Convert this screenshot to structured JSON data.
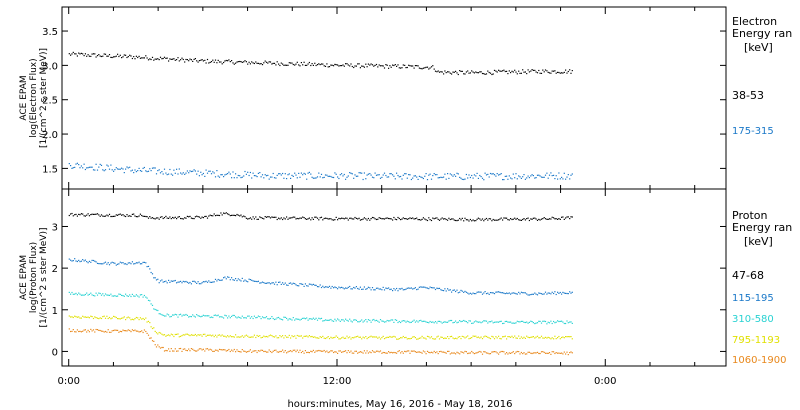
{
  "xlabel": "hours:minutes, May 16, 2016 - May 18, 2016",
  "x_ticks": [
    "0:00",
    "12:00",
    "0:00"
  ],
  "x_tick_hours": [
    0,
    12,
    24
  ],
  "x_range_hours": [
    -0.3,
    29.4
  ],
  "chart_data": [
    {
      "type": "scatter",
      "title": "",
      "ylabel": [
        "ACE EPAM",
        "log(Electron Flux)",
        "[1/(cm^2 s ster MeV)]"
      ],
      "ylim": [
        1.2,
        3.85
      ],
      "y_ticks": [
        1.5,
        2.0,
        2.5,
        3.0,
        3.5
      ],
      "y_tick_labels": [
        "1.5",
        "2.0",
        "2.5",
        "3.0",
        "3.5"
      ],
      "legend_title": [
        "Electron",
        "Energy ran",
        "[keV]"
      ],
      "series": [
        {
          "name": "38-53",
          "color": "#000000",
          "points": [
            [
              0.0,
              3.17
            ],
            [
              3.0,
              3.13
            ],
            [
              6.0,
              3.07
            ],
            [
              9.0,
              3.04
            ],
            [
              12.0,
              3.01
            ],
            [
              15.0,
              2.99
            ],
            [
              16.3,
              2.98
            ],
            [
              16.5,
              2.91
            ],
            [
              18.0,
              2.9
            ],
            [
              21.0,
              2.92
            ],
            [
              22.5,
              2.92
            ]
          ]
        },
        {
          "name": "175-315",
          "color": "#1a78c8",
          "points": [
            [
              0.0,
              1.56
            ],
            [
              3.0,
              1.48
            ],
            [
              6.0,
              1.44
            ],
            [
              9.0,
              1.4
            ],
            [
              12.0,
              1.4
            ],
            [
              15.0,
              1.39
            ],
            [
              18.0,
              1.39
            ],
            [
              21.0,
              1.4
            ],
            [
              22.5,
              1.4
            ]
          ]
        }
      ]
    },
    {
      "type": "scatter",
      "title": "",
      "ylabel": [
        "ACE EPAM",
        "log(Proton Flux)",
        "[1/(cm^2 s ster MeV)]"
      ],
      "ylim": [
        -0.35,
        3.9
      ],
      "y_ticks": [
        0,
        1,
        2,
        3
      ],
      "y_tick_labels": [
        "0",
        "1",
        "2",
        "3"
      ],
      "legend_title": [
        "Proton",
        "Energy ran",
        "[keV]"
      ],
      "series": [
        {
          "name": "47-68",
          "color": "#000000",
          "points": [
            [
              0.0,
              3.3
            ],
            [
              3.3,
              3.28
            ],
            [
              3.5,
              3.22
            ],
            [
              6.0,
              3.23
            ],
            [
              6.8,
              3.32
            ],
            [
              7.5,
              3.3
            ],
            [
              8.0,
              3.22
            ],
            [
              12.0,
              3.2
            ],
            [
              15.0,
              3.2
            ],
            [
              18.0,
              3.18
            ],
            [
              21.0,
              3.19
            ],
            [
              22.5,
              3.22
            ]
          ]
        },
        {
          "name": "115-195",
          "color": "#1a78c8",
          "points": [
            [
              0.0,
              2.22
            ],
            [
              2.0,
              2.12
            ],
            [
              3.4,
              2.15
            ],
            [
              3.8,
              1.8
            ],
            [
              4.0,
              1.7
            ],
            [
              6.0,
              1.66
            ],
            [
              7.0,
              1.78
            ],
            [
              9.0,
              1.66
            ],
            [
              12.0,
              1.55
            ],
            [
              15.0,
              1.5
            ],
            [
              15.8,
              1.55
            ],
            [
              18.0,
              1.42
            ],
            [
              21.0,
              1.4
            ],
            [
              22.5,
              1.43
            ]
          ]
        },
        {
          "name": "310-580",
          "color": "#28d2d2",
          "points": [
            [
              0.0,
              1.4
            ],
            [
              2.0,
              1.37
            ],
            [
              3.4,
              1.35
            ],
            [
              3.9,
              0.98
            ],
            [
              4.3,
              0.88
            ],
            [
              6.0,
              0.86
            ],
            [
              8.0,
              0.84
            ],
            [
              10.0,
              0.8
            ],
            [
              12.0,
              0.76
            ],
            [
              15.0,
              0.74
            ],
            [
              18.0,
              0.72
            ],
            [
              21.0,
              0.71
            ],
            [
              22.5,
              0.72
            ]
          ]
        },
        {
          "name": "795-1193",
          "color": "#e0e000",
          "points": [
            [
              0.0,
              0.85
            ],
            [
              2.0,
              0.82
            ],
            [
              3.4,
              0.8
            ],
            [
              3.9,
              0.48
            ],
            [
              4.3,
              0.4
            ],
            [
              6.0,
              0.4
            ],
            [
              8.0,
              0.38
            ],
            [
              12.0,
              0.35
            ],
            [
              15.0,
              0.34
            ],
            [
              18.0,
              0.35
            ],
            [
              21.0,
              0.35
            ],
            [
              22.5,
              0.35
            ]
          ]
        },
        {
          "name": "1060-1900",
          "color": "#e8881c",
          "points": [
            [
              0.0,
              0.52
            ],
            [
              2.0,
              0.5
            ],
            [
              3.4,
              0.5
            ],
            [
              3.9,
              0.15
            ],
            [
              4.3,
              0.05
            ],
            [
              6.0,
              0.05
            ],
            [
              8.0,
              0.02
            ],
            [
              12.0,
              0.0
            ],
            [
              15.0,
              0.0
            ],
            [
              18.0,
              -0.02
            ],
            [
              21.0,
              -0.02
            ],
            [
              22.5,
              -0.03
            ]
          ]
        }
      ]
    }
  ]
}
